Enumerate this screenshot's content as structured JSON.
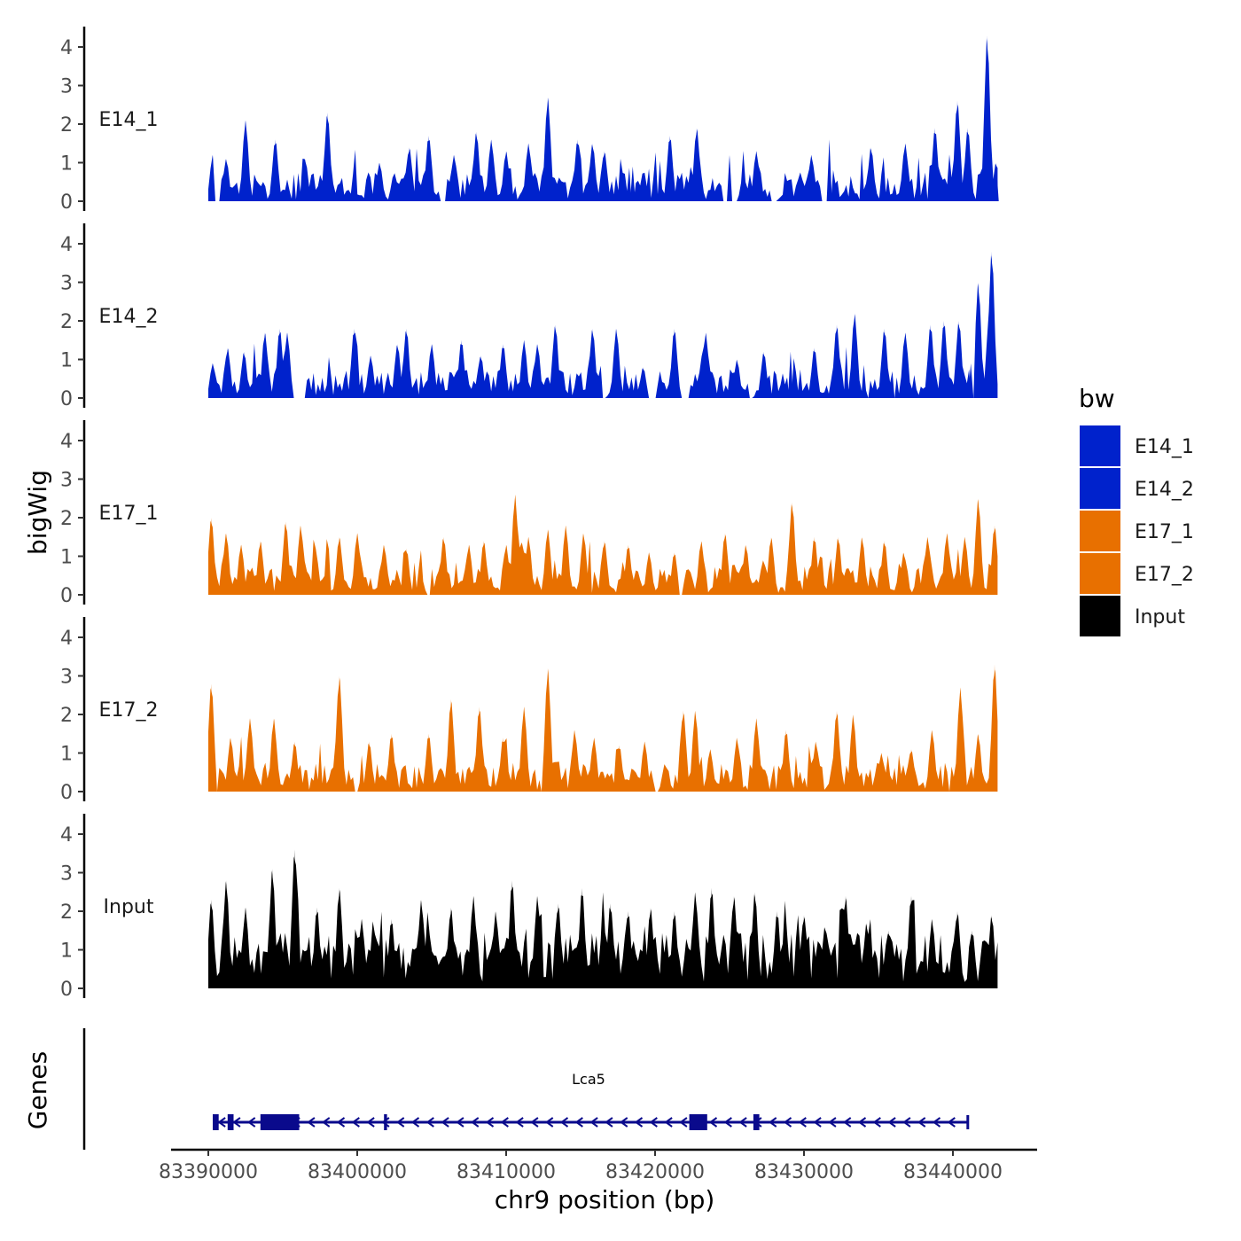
{
  "chart_data": {
    "type": "area",
    "chromosome": "chr9",
    "x_range": [
      83390000,
      83443000
    ],
    "xlim": [
      83389500,
      83445800
    ],
    "x_ticks": [
      83390000,
      83400000,
      83410000,
      83420000,
      83430000,
      83440000
    ],
    "x_tick_labels": [
      "83390000",
      "83400000",
      "83410000",
      "83420000",
      "83430000",
      "83440000"
    ],
    "xlabel": "chr9 position (bp)",
    "ylabel": "bigWig",
    "ylim": [
      0,
      4.4
    ],
    "y_ticks": [
      0,
      1,
      2,
      3,
      4
    ],
    "y_tick_labels": [
      "0",
      "1",
      "2",
      "3",
      "4"
    ],
    "genes_panel_label": "Genes",
    "legend": {
      "title": "bw",
      "entries": [
        {
          "label": "E14_1",
          "color": "#0022CC"
        },
        {
          "label": "E14_2",
          "color": "#0022CC"
        },
        {
          "label": "E17_1",
          "color": "#E87000"
        },
        {
          "label": "E17_2",
          "color": "#E87000"
        },
        {
          "label": "Input",
          "color": "#000000"
        }
      ]
    },
    "tracks": [
      {
        "name": "E14_1",
        "color": "#0022CC",
        "peaks": [
          [
            83390300,
            1.2
          ],
          [
            83391200,
            1.1
          ],
          [
            83392500,
            2.1
          ],
          [
            83394500,
            1.6
          ],
          [
            83396500,
            1.1
          ],
          [
            83398000,
            2.3
          ],
          [
            83401500,
            1.0
          ],
          [
            83403500,
            1.4
          ],
          [
            83404800,
            1.7
          ],
          [
            83406500,
            1.2
          ],
          [
            83408000,
            1.8
          ],
          [
            83409000,
            1.6
          ],
          [
            83410000,
            1.3
          ],
          [
            83411500,
            1.5
          ],
          [
            83412800,
            2.7
          ],
          [
            83414800,
            1.6
          ],
          [
            83415800,
            1.5
          ],
          [
            83416600,
            1.3
          ],
          [
            83418500,
            0.9
          ],
          [
            83421000,
            1.7
          ],
          [
            83422800,
            1.9
          ],
          [
            83425000,
            1.2
          ],
          [
            83426800,
            1.3
          ],
          [
            83430500,
            1.2
          ],
          [
            83431700,
            1.6
          ],
          [
            83434500,
            1.4
          ],
          [
            83436800,
            1.5
          ],
          [
            83438800,
            1.9
          ],
          [
            83440300,
            2.6
          ],
          [
            83441000,
            1.9
          ],
          [
            83442300,
            4.3
          ],
          [
            83442900,
            1.0
          ]
        ],
        "gaps": [
          [
            83390400,
            83390800
          ],
          [
            83405600,
            83405900
          ],
          [
            83418400,
            83418600
          ],
          [
            83424500,
            83425500
          ],
          [
            83427700,
            83428200
          ],
          [
            83431200,
            83431900
          ]
        ]
      },
      {
        "name": "E14_2",
        "color": "#0022CC",
        "peaks": [
          [
            83390300,
            0.9
          ],
          [
            83391300,
            1.3
          ],
          [
            83392400,
            1.2
          ],
          [
            83393800,
            1.7
          ],
          [
            83394800,
            1.8
          ],
          [
            83395300,
            1.7
          ],
          [
            83399800,
            1.8
          ],
          [
            83400900,
            1.1
          ],
          [
            83402700,
            1.4
          ],
          [
            83403300,
            1.8
          ],
          [
            83405000,
            1.4
          ],
          [
            83407000,
            1.5
          ],
          [
            83408300,
            1.1
          ],
          [
            83409800,
            1.4
          ],
          [
            83411200,
            1.5
          ],
          [
            83412100,
            1.4
          ],
          [
            83413300,
            1.9
          ],
          [
            83415800,
            1.8
          ],
          [
            83417400,
            1.8
          ],
          [
            83419200,
            0.8
          ],
          [
            83421300,
            1.8
          ],
          [
            83423400,
            1.7
          ],
          [
            83425500,
            1.0
          ],
          [
            83427300,
            1.2
          ],
          [
            83429100,
            1.2
          ],
          [
            83430700,
            1.3
          ],
          [
            83432200,
            1.9
          ],
          [
            83433400,
            2.2
          ],
          [
            83435400,
            1.8
          ],
          [
            83436800,
            1.7
          ],
          [
            83438500,
            1.9
          ],
          [
            83439400,
            2.0
          ],
          [
            83440400,
            2.0
          ],
          [
            83441200,
            0.9
          ],
          [
            83441700,
            3.0
          ],
          [
            83442600,
            3.8
          ]
        ],
        "gaps": [
          [
            83395700,
            83396500
          ],
          [
            83416500,
            83416700
          ],
          [
            83419500,
            83420100
          ],
          [
            83421700,
            83422300
          ],
          [
            83426300,
            83426600
          ],
          [
            83428900,
            83429200
          ],
          [
            83434200,
            83434400
          ],
          [
            83436000,
            83436100
          ],
          [
            83441100,
            83441400
          ]
        ]
      },
      {
        "name": "E17_1",
        "color": "#E87000",
        "peaks": [
          [
            83390200,
            2.0
          ],
          [
            83391200,
            1.6
          ],
          [
            83392200,
            1.3
          ],
          [
            83393500,
            1.4
          ],
          [
            83395200,
            1.9
          ],
          [
            83396200,
            1.8
          ],
          [
            83397200,
            1.2
          ],
          [
            83398800,
            1.5
          ],
          [
            83400000,
            1.6
          ],
          [
            83401800,
            1.3
          ],
          [
            83403300,
            1.2
          ],
          [
            83405800,
            1.5
          ],
          [
            83407500,
            1.3
          ],
          [
            83408500,
            1.4
          ],
          [
            83410000,
            1.3
          ],
          [
            83410600,
            2.6
          ],
          [
            83411500,
            1.5
          ],
          [
            83412800,
            1.7
          ],
          [
            83414000,
            1.8
          ],
          [
            83415200,
            1.6
          ],
          [
            83416600,
            1.4
          ],
          [
            83418200,
            1.3
          ],
          [
            83419600,
            1.1
          ],
          [
            83421300,
            1.1
          ],
          [
            83423100,
            1.4
          ],
          [
            83424700,
            1.6
          ],
          [
            83426100,
            1.3
          ],
          [
            83427800,
            1.5
          ],
          [
            83429200,
            2.4
          ],
          [
            83430700,
            1.5
          ],
          [
            83432300,
            1.5
          ],
          [
            83433900,
            1.5
          ],
          [
            83435400,
            1.4
          ],
          [
            83436700,
            1.1
          ],
          [
            83438300,
            1.5
          ],
          [
            83439600,
            1.6
          ],
          [
            83440800,
            1.5
          ],
          [
            83441700,
            2.5
          ],
          [
            83442800,
            1.8
          ]
        ],
        "gaps": [
          [
            83404700,
            83404900
          ],
          [
            83421600,
            83421800
          ]
        ]
      },
      {
        "name": "E17_2",
        "color": "#E87000",
        "peaks": [
          [
            83390200,
            2.8
          ],
          [
            83391500,
            1.4
          ],
          [
            83392800,
            1.9
          ],
          [
            83394400,
            1.9
          ],
          [
            83395800,
            1.3
          ],
          [
            83398800,
            3.0
          ],
          [
            83400800,
            1.3
          ],
          [
            83402300,
            1.5
          ],
          [
            83404800,
            1.5
          ],
          [
            83406300,
            2.4
          ],
          [
            83408200,
            2.2
          ],
          [
            83409800,
            1.4
          ],
          [
            83411200,
            2.2
          ],
          [
            83412800,
            3.2
          ],
          [
            83414600,
            1.6
          ],
          [
            83415900,
            1.4
          ],
          [
            83417600,
            1.2
          ],
          [
            83419300,
            1.3
          ],
          [
            83421900,
            2.1
          ],
          [
            83422700,
            2.1
          ],
          [
            83423700,
            1.1
          ],
          [
            83425500,
            1.4
          ],
          [
            83426800,
            1.9
          ],
          [
            83428800,
            1.6
          ],
          [
            83430800,
            1.3
          ],
          [
            83432200,
            2.1
          ],
          [
            83433300,
            2.0
          ],
          [
            83435200,
            1.0
          ],
          [
            83437200,
            1.1
          ],
          [
            83438600,
            1.6
          ],
          [
            83440500,
            2.7
          ],
          [
            83441700,
            1.5
          ],
          [
            83442800,
            3.3
          ]
        ],
        "gaps": [
          [
            83390500,
            83390700
          ],
          [
            83399800,
            83400100
          ],
          [
            83412300,
            83412500
          ],
          [
            83420000,
            83420300
          ],
          [
            83434200,
            83434300
          ],
          [
            83439700,
            83439900
          ]
        ]
      },
      {
        "name": "Input",
        "color": "#000000",
        "peaks": [
          [
            83390200,
            2.3
          ],
          [
            83391200,
            2.8
          ],
          [
            83392500,
            2.1
          ],
          [
            83394300,
            3.1
          ],
          [
            83395800,
            3.6
          ],
          [
            83397300,
            2.1
          ],
          [
            83398800,
            2.6
          ],
          [
            83400300,
            1.8
          ],
          [
            83402300,
            1.8
          ],
          [
            83404300,
            2.3
          ],
          [
            83406300,
            2.1
          ],
          [
            83407800,
            2.4
          ],
          [
            83409300,
            2.0
          ],
          [
            83410400,
            2.8
          ],
          [
            83412100,
            2.4
          ],
          [
            83413500,
            2.2
          ],
          [
            83415100,
            2.6
          ],
          [
            83417000,
            2.2
          ],
          [
            83418200,
            2.0
          ],
          [
            83419700,
            2.1
          ],
          [
            83421300,
            2.0
          ],
          [
            83422700,
            2.5
          ],
          [
            83423800,
            2.6
          ],
          [
            83425300,
            2.4
          ],
          [
            83426700,
            2.5
          ],
          [
            83428200,
            2.0
          ],
          [
            83430000,
            1.9
          ],
          [
            83431400,
            1.6
          ],
          [
            83432800,
            2.4
          ],
          [
            83434200,
            1.7
          ],
          [
            83435700,
            1.5
          ],
          [
            83437200,
            2.4
          ],
          [
            83438600,
            1.8
          ],
          [
            83440300,
            2.0
          ],
          [
            83441300,
            1.5
          ],
          [
            83442600,
            1.9
          ]
        ],
        "gaps": []
      }
    ],
    "gene": {
      "name": "Lca5",
      "strand": "-",
      "start": 83390300,
      "end": 83441000,
      "color": "#0A0A8C",
      "exons": [
        [
          83390300,
          83390700
        ],
        [
          83391300,
          83391700
        ],
        [
          83393500,
          83396100
        ],
        [
          83401800,
          83402000
        ],
        [
          83422300,
          83423500
        ],
        [
          83426600,
          83427000
        ]
      ]
    }
  }
}
